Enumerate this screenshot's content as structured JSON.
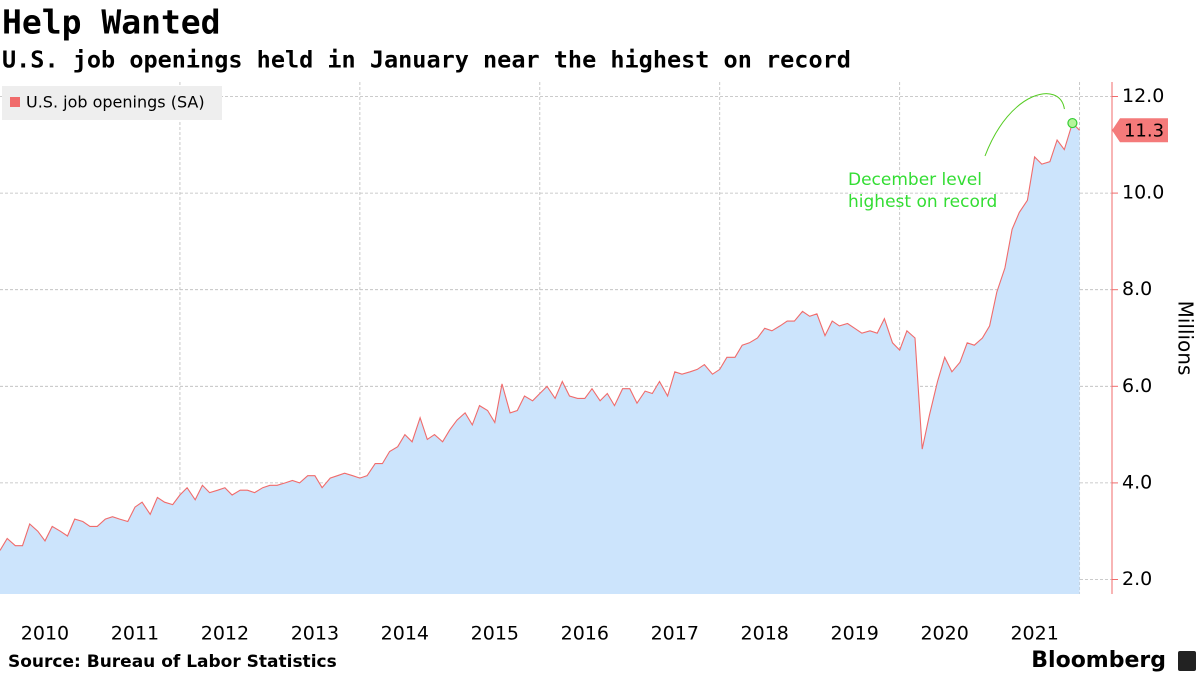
{
  "chart_data": {
    "type": "area",
    "title": "Help Wanted",
    "subtitle": "U.S. job openings held in January near the highest on record",
    "y_label": "Millions",
    "source": "Source: Bureau of Labor Statistics",
    "brand": "Bloomberg",
    "annotation": {
      "text": [
        "December level",
        "highest on record"
      ],
      "x": 2021.92
    },
    "xlim": [
      2010,
      2022.36
    ],
    "xticks": [
      {
        "value": 2010.5,
        "label": "2010"
      },
      {
        "value": 2011.5,
        "label": "2011"
      },
      {
        "value": 2012.5,
        "label": "2012"
      },
      {
        "value": 2013.5,
        "label": "2013"
      },
      {
        "value": 2014.5,
        "label": "2014"
      },
      {
        "value": 2015.5,
        "label": "2015"
      },
      {
        "value": 2016.5,
        "label": "2016"
      },
      {
        "value": 2017.5,
        "label": "2017"
      },
      {
        "value": 2018.5,
        "label": "2018"
      },
      {
        "value": 2019.5,
        "label": "2019"
      },
      {
        "value": 2020.5,
        "label": "2020"
      },
      {
        "value": 2021.5,
        "label": "2021"
      }
    ],
    "xgrid": [
      2012,
      2014,
      2016,
      2018,
      2020,
      2022
    ],
    "ylim": [
      1.7,
      12.3
    ],
    "yticks": [
      {
        "value": 2,
        "label": "2.0"
      },
      {
        "value": 4,
        "label": "4.0"
      },
      {
        "value": 6,
        "label": "6.0"
      },
      {
        "value": 8,
        "label": "8.0"
      },
      {
        "value": 10,
        "label": "10.0"
      },
      {
        "value": 12,
        "label": "12.0"
      }
    ],
    "grid": true,
    "legend": "top-left",
    "x": [
      2010.0,
      2010.08,
      2010.17,
      2010.25,
      2010.33,
      2010.42,
      2010.5,
      2010.58,
      2010.67,
      2010.75,
      2010.83,
      2010.92,
      2011.0,
      2011.08,
      2011.17,
      2011.25,
      2011.33,
      2011.42,
      2011.5,
      2011.58,
      2011.67,
      2011.75,
      2011.83,
      2011.92,
      2012.0,
      2012.08,
      2012.17,
      2012.25,
      2012.33,
      2012.42,
      2012.5,
      2012.58,
      2012.67,
      2012.75,
      2012.83,
      2012.92,
      2013.0,
      2013.08,
      2013.17,
      2013.25,
      2013.33,
      2013.42,
      2013.5,
      2013.58,
      2013.67,
      2013.75,
      2013.83,
      2013.92,
      2014.0,
      2014.08,
      2014.17,
      2014.25,
      2014.33,
      2014.42,
      2014.5,
      2014.58,
      2014.67,
      2014.75,
      2014.83,
      2014.92,
      2015.0,
      2015.08,
      2015.17,
      2015.25,
      2015.33,
      2015.42,
      2015.5,
      2015.58,
      2015.67,
      2015.75,
      2015.83,
      2015.92,
      2016.0,
      2016.08,
      2016.17,
      2016.25,
      2016.33,
      2016.42,
      2016.5,
      2016.58,
      2016.67,
      2016.75,
      2016.83,
      2016.92,
      2017.0,
      2017.08,
      2017.17,
      2017.25,
      2017.33,
      2017.42,
      2017.5,
      2017.58,
      2017.67,
      2017.75,
      2017.83,
      2017.92,
      2018.0,
      2018.08,
      2018.17,
      2018.25,
      2018.33,
      2018.42,
      2018.5,
      2018.58,
      2018.67,
      2018.75,
      2018.83,
      2018.92,
      2019.0,
      2019.08,
      2019.17,
      2019.25,
      2019.33,
      2019.42,
      2019.5,
      2019.58,
      2019.67,
      2019.75,
      2019.83,
      2019.92,
      2020.0,
      2020.08,
      2020.17,
      2020.25,
      2020.33,
      2020.42,
      2020.5,
      2020.58,
      2020.67,
      2020.75,
      2020.83,
      2020.92,
      2021.0,
      2021.08,
      2021.17,
      2021.25,
      2021.33,
      2021.42,
      2021.5,
      2021.58,
      2021.67,
      2021.75,
      2021.83,
      2021.92,
      2022.0
    ],
    "series": [
      {
        "name": "U.S. job openings (SA)",
        "color": "#f06b6b",
        "fill": "#cce4fc",
        "values": [
          2.6,
          2.85,
          2.7,
          2.7,
          3.15,
          3.0,
          2.8,
          3.1,
          3.0,
          2.9,
          3.25,
          3.2,
          3.1,
          3.1,
          3.25,
          3.3,
          3.25,
          3.2,
          3.5,
          3.6,
          3.35,
          3.7,
          3.6,
          3.55,
          3.75,
          3.9,
          3.65,
          3.95,
          3.8,
          3.85,
          3.9,
          3.75,
          3.85,
          3.85,
          3.8,
          3.9,
          3.95,
          3.95,
          4.0,
          4.05,
          4.0,
          4.15,
          4.15,
          3.9,
          4.1,
          4.15,
          4.2,
          4.15,
          4.1,
          4.15,
          4.4,
          4.4,
          4.65,
          4.75,
          5.0,
          4.85,
          5.35,
          4.9,
          5.0,
          4.85,
          5.1,
          5.3,
          5.45,
          5.2,
          5.6,
          5.5,
          5.25,
          6.05,
          5.45,
          5.5,
          5.8,
          5.7,
          5.85,
          6.0,
          5.75,
          6.1,
          5.8,
          5.75,
          5.75,
          5.95,
          5.7,
          5.85,
          5.6,
          5.95,
          5.95,
          5.65,
          5.9,
          5.85,
          6.1,
          5.8,
          6.3,
          6.25,
          6.3,
          6.35,
          6.45,
          6.25,
          6.35,
          6.6,
          6.6,
          6.85,
          6.9,
          7.0,
          7.2,
          7.15,
          7.25,
          7.35,
          7.35,
          7.55,
          7.45,
          7.5,
          7.05,
          7.35,
          7.25,
          7.3,
          7.2,
          7.1,
          7.15,
          7.1,
          7.4,
          6.9,
          6.75,
          7.15,
          7.0,
          4.7,
          5.4,
          6.1,
          6.6,
          6.3,
          6.5,
          6.9,
          6.85,
          7.0,
          7.25,
          7.95,
          8.45,
          9.25,
          9.6,
          9.85,
          10.75,
          10.6,
          10.65,
          11.1,
          10.9,
          11.45,
          11.3
        ]
      }
    ]
  }
}
